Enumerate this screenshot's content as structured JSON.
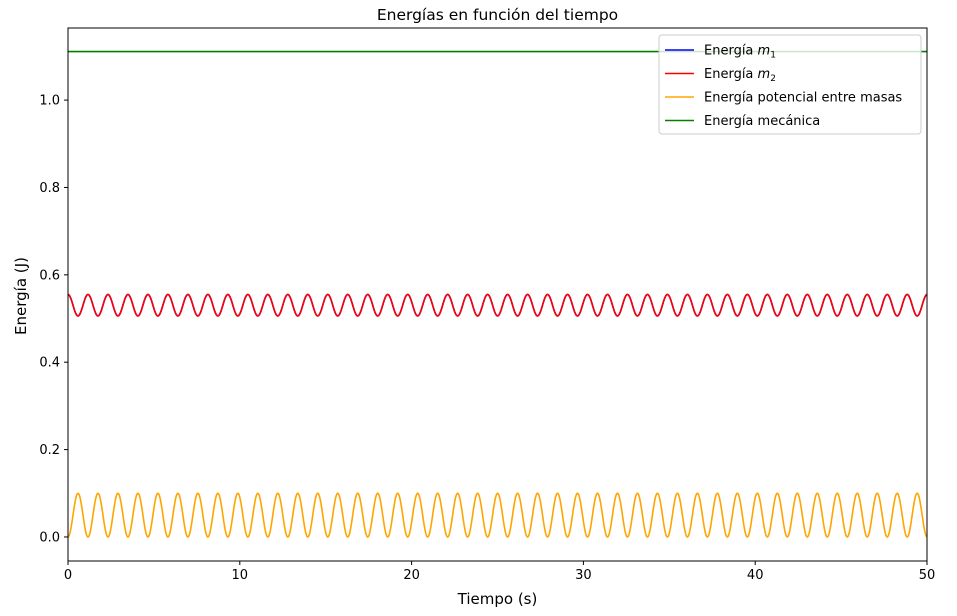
{
  "chart_data": {
    "type": "line",
    "title": "Energías en función del tiempo",
    "xlabel": "Tiempo (s)",
    "ylabel": "Energía (J)",
    "xlim": [
      0,
      50
    ],
    "ylim": [
      -0.055,
      1.165
    ],
    "xticks": [
      0,
      10,
      20,
      30,
      40,
      50
    ],
    "xtick_labels": [
      "0",
      "10",
      "20",
      "30",
      "40",
      "50"
    ],
    "yticks": [
      0.0,
      0.2,
      0.4,
      0.6,
      0.8,
      1.0
    ],
    "ytick_labels": [
      "0.0",
      "0.2",
      "0.4",
      "0.6",
      "0.8",
      "1.0"
    ],
    "grid": false,
    "legend_position": "top-right",
    "series": [
      {
        "name": "Energía m1",
        "legend_main": "Energía ",
        "legend_var": "m",
        "legend_sub": "1",
        "color": "#0000ff",
        "mean": 0.5305,
        "amplitude": 0.0245,
        "period": 1.163,
        "phase": 0.0
      },
      {
        "name": "Energía m2",
        "legend_main": "Energía ",
        "legend_var": "m",
        "legend_sub": "2",
        "color": "#ff0000",
        "mean": 0.5305,
        "amplitude": 0.0245,
        "period": 1.163,
        "phase": 0.0
      },
      {
        "name": "Energía potencial entre masas",
        "legend_main": "Energía potencial entre masas",
        "color": "#ffa500",
        "mean": 0.05,
        "amplitude": 0.05,
        "period": 1.163,
        "phase": 3.14159
      },
      {
        "name": "Energía mecánica",
        "legend_main": "Energía mecánica",
        "color": "#008000",
        "constant": 1.111
      }
    ]
  }
}
